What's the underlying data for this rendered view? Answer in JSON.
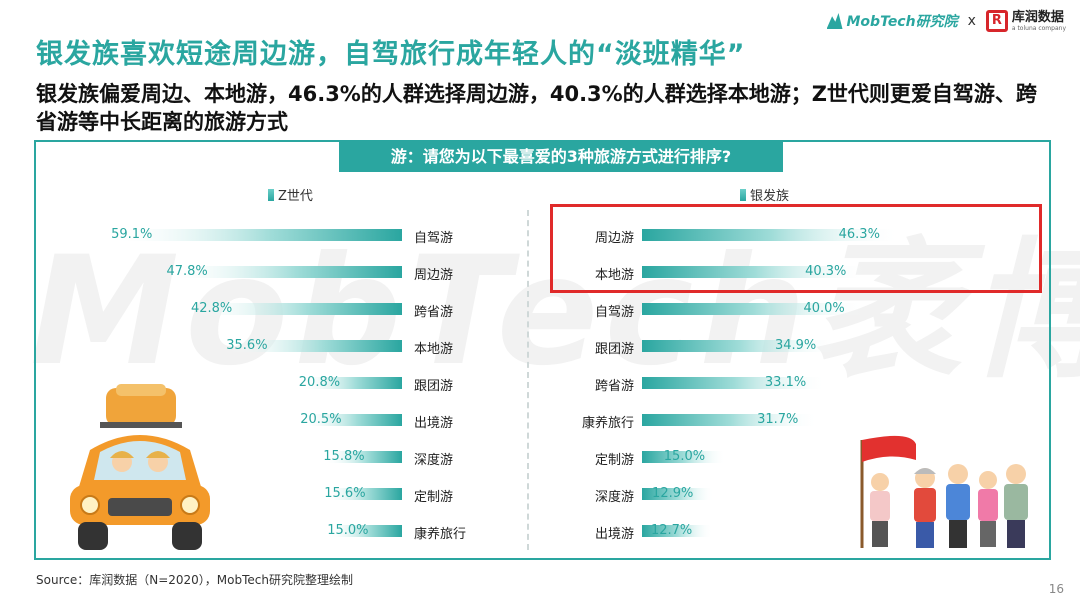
{
  "brand": {
    "mobtech": "MobTech研究院",
    "sep": "x",
    "partner": "库润数据",
    "partner_sub": "a toluna company"
  },
  "title": "银发族喜欢短途周边游，自驾旅行成年轻人的“淡班精华”",
  "subtitle": "银发族偏爱周边、本地游，46.3%的人群选择周边游，40.3%的人群选择本地游；Z世代则更爱自驾游、跨省游等中长距离的旅游方式",
  "panel": {
    "header": "游：请您为以下最喜爱的3种旅游方式进行排序?"
  },
  "watermark": "MobTech袤博",
  "colors": {
    "accent": "#2aa6a0",
    "highlight": "#e02a2a"
  },
  "chart_data": [
    {
      "type": "bar",
      "orientation": "horizontal",
      "series": [
        {
          "name": "Z世代",
          "values": [
            59.1,
            47.8,
            42.8,
            35.6,
            20.8,
            20.5,
            15.8,
            15.6,
            15.0
          ]
        }
      ],
      "categories": [
        "自驾游",
        "周边游",
        "跨省游",
        "本地游",
        "跟团游",
        "出境游",
        "深度游",
        "定制游",
        "康养旅行"
      ],
      "unit": "%"
    },
    {
      "type": "bar",
      "orientation": "horizontal",
      "series": [
        {
          "name": "银发族",
          "values": [
            46.3,
            40.3,
            40.0,
            34.9,
            33.1,
            31.7,
            15.0,
            12.9,
            12.7
          ]
        }
      ],
      "categories": [
        "周边游",
        "本地游",
        "自驾游",
        "跟团游",
        "跨省游",
        "康养旅行",
        "定制游",
        "深度游",
        "出境游"
      ],
      "unit": "%"
    }
  ],
  "source": "Source：库润数据（N=2020），MobTech研究院整理绘制",
  "page_number": "16"
}
